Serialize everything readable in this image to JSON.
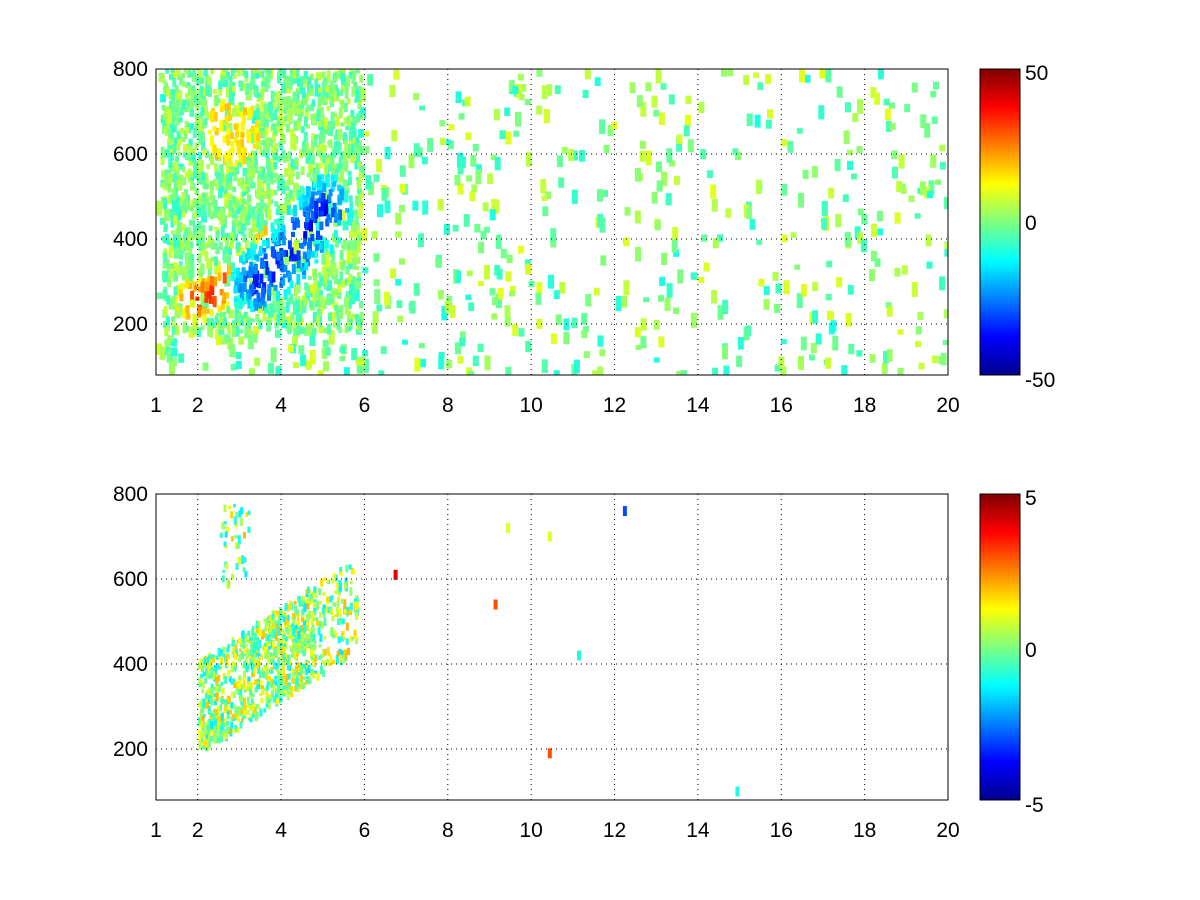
{
  "chart_data": [
    {
      "type": "heatmap",
      "title": "",
      "xlabel": "",
      "ylabel": "",
      "xlim": [
        1,
        20
      ],
      "ylim": [
        80,
        800
      ],
      "xticks": [
        1,
        2,
        4,
        6,
        8,
        10,
        12,
        14,
        16,
        18,
        20
      ],
      "xtick_labels": [
        "1",
        "2",
        "4",
        "6",
        "8",
        "10",
        "12",
        "14",
        "16",
        "18",
        "20"
      ],
      "yticks": [
        200,
        400,
        600,
        800
      ],
      "ytick_labels": [
        "200",
        "400",
        "600",
        "800"
      ],
      "grid": true,
      "colormap": "jet",
      "colorbar": {
        "min": -50,
        "max": 50,
        "ticks": [
          50,
          0,
          -50
        ],
        "tick_labels": [
          "50",
          "0",
          "-50"
        ]
      },
      "features": {
        "positive_ridge": {
          "x": [
            1.9,
            2.3,
            2.8,
            3.3,
            3.8
          ],
          "y": [
            255,
            270,
            300,
            340,
            390
          ],
          "value": 40
        },
        "negative_ridge": {
          "x": [
            3.4,
            3.8,
            4.2,
            4.6,
            5.0
          ],
          "y": [
            300,
            330,
            370,
            420,
            470
          ],
          "value": -40
        },
        "upper_positive_blob": {
          "x": 2.8,
          "y": 650,
          "value": 15
        },
        "sparse_values_range": [
          -10,
          10
        ]
      }
    },
    {
      "type": "heatmap",
      "title": "",
      "xlabel": "",
      "ylabel": "",
      "xlim": [
        1,
        20
      ],
      "ylim": [
        80,
        800
      ],
      "xticks": [
        1,
        2,
        4,
        6,
        8,
        10,
        12,
        14,
        16,
        18,
        20
      ],
      "xtick_labels": [
        "1",
        "2",
        "4",
        "6",
        "8",
        "10",
        "12",
        "14",
        "16",
        "18",
        "20"
      ],
      "yticks": [
        200,
        400,
        600,
        800
      ],
      "ytick_labels": [
        "200",
        "400",
        "600",
        "800"
      ],
      "grid": true,
      "colormap": "jet",
      "colorbar": {
        "min": -5,
        "max": 5,
        "ticks": [
          5,
          0,
          -5
        ],
        "tick_labels": [
          "5",
          "0",
          "-5"
        ]
      },
      "features": {
        "main_cluster": {
          "x_range": [
            2.0,
            5.8
          ],
          "y_range": [
            200,
            780
          ],
          "value_range": [
            -1.5,
            2
          ]
        },
        "isolated_points": [
          {
            "x": 6.7,
            "y": 610,
            "value": 4
          },
          {
            "x": 9.1,
            "y": 540,
            "value": 3
          },
          {
            "x": 9.4,
            "y": 720,
            "value": 1
          },
          {
            "x": 10.4,
            "y": 700,
            "value": 1
          },
          {
            "x": 10.4,
            "y": 190,
            "value": 3
          },
          {
            "x": 11.1,
            "y": 420,
            "value": -1
          },
          {
            "x": 12.2,
            "y": 760,
            "value": -3
          },
          {
            "x": 14.9,
            "y": 100,
            "value": -1
          }
        ]
      }
    }
  ]
}
